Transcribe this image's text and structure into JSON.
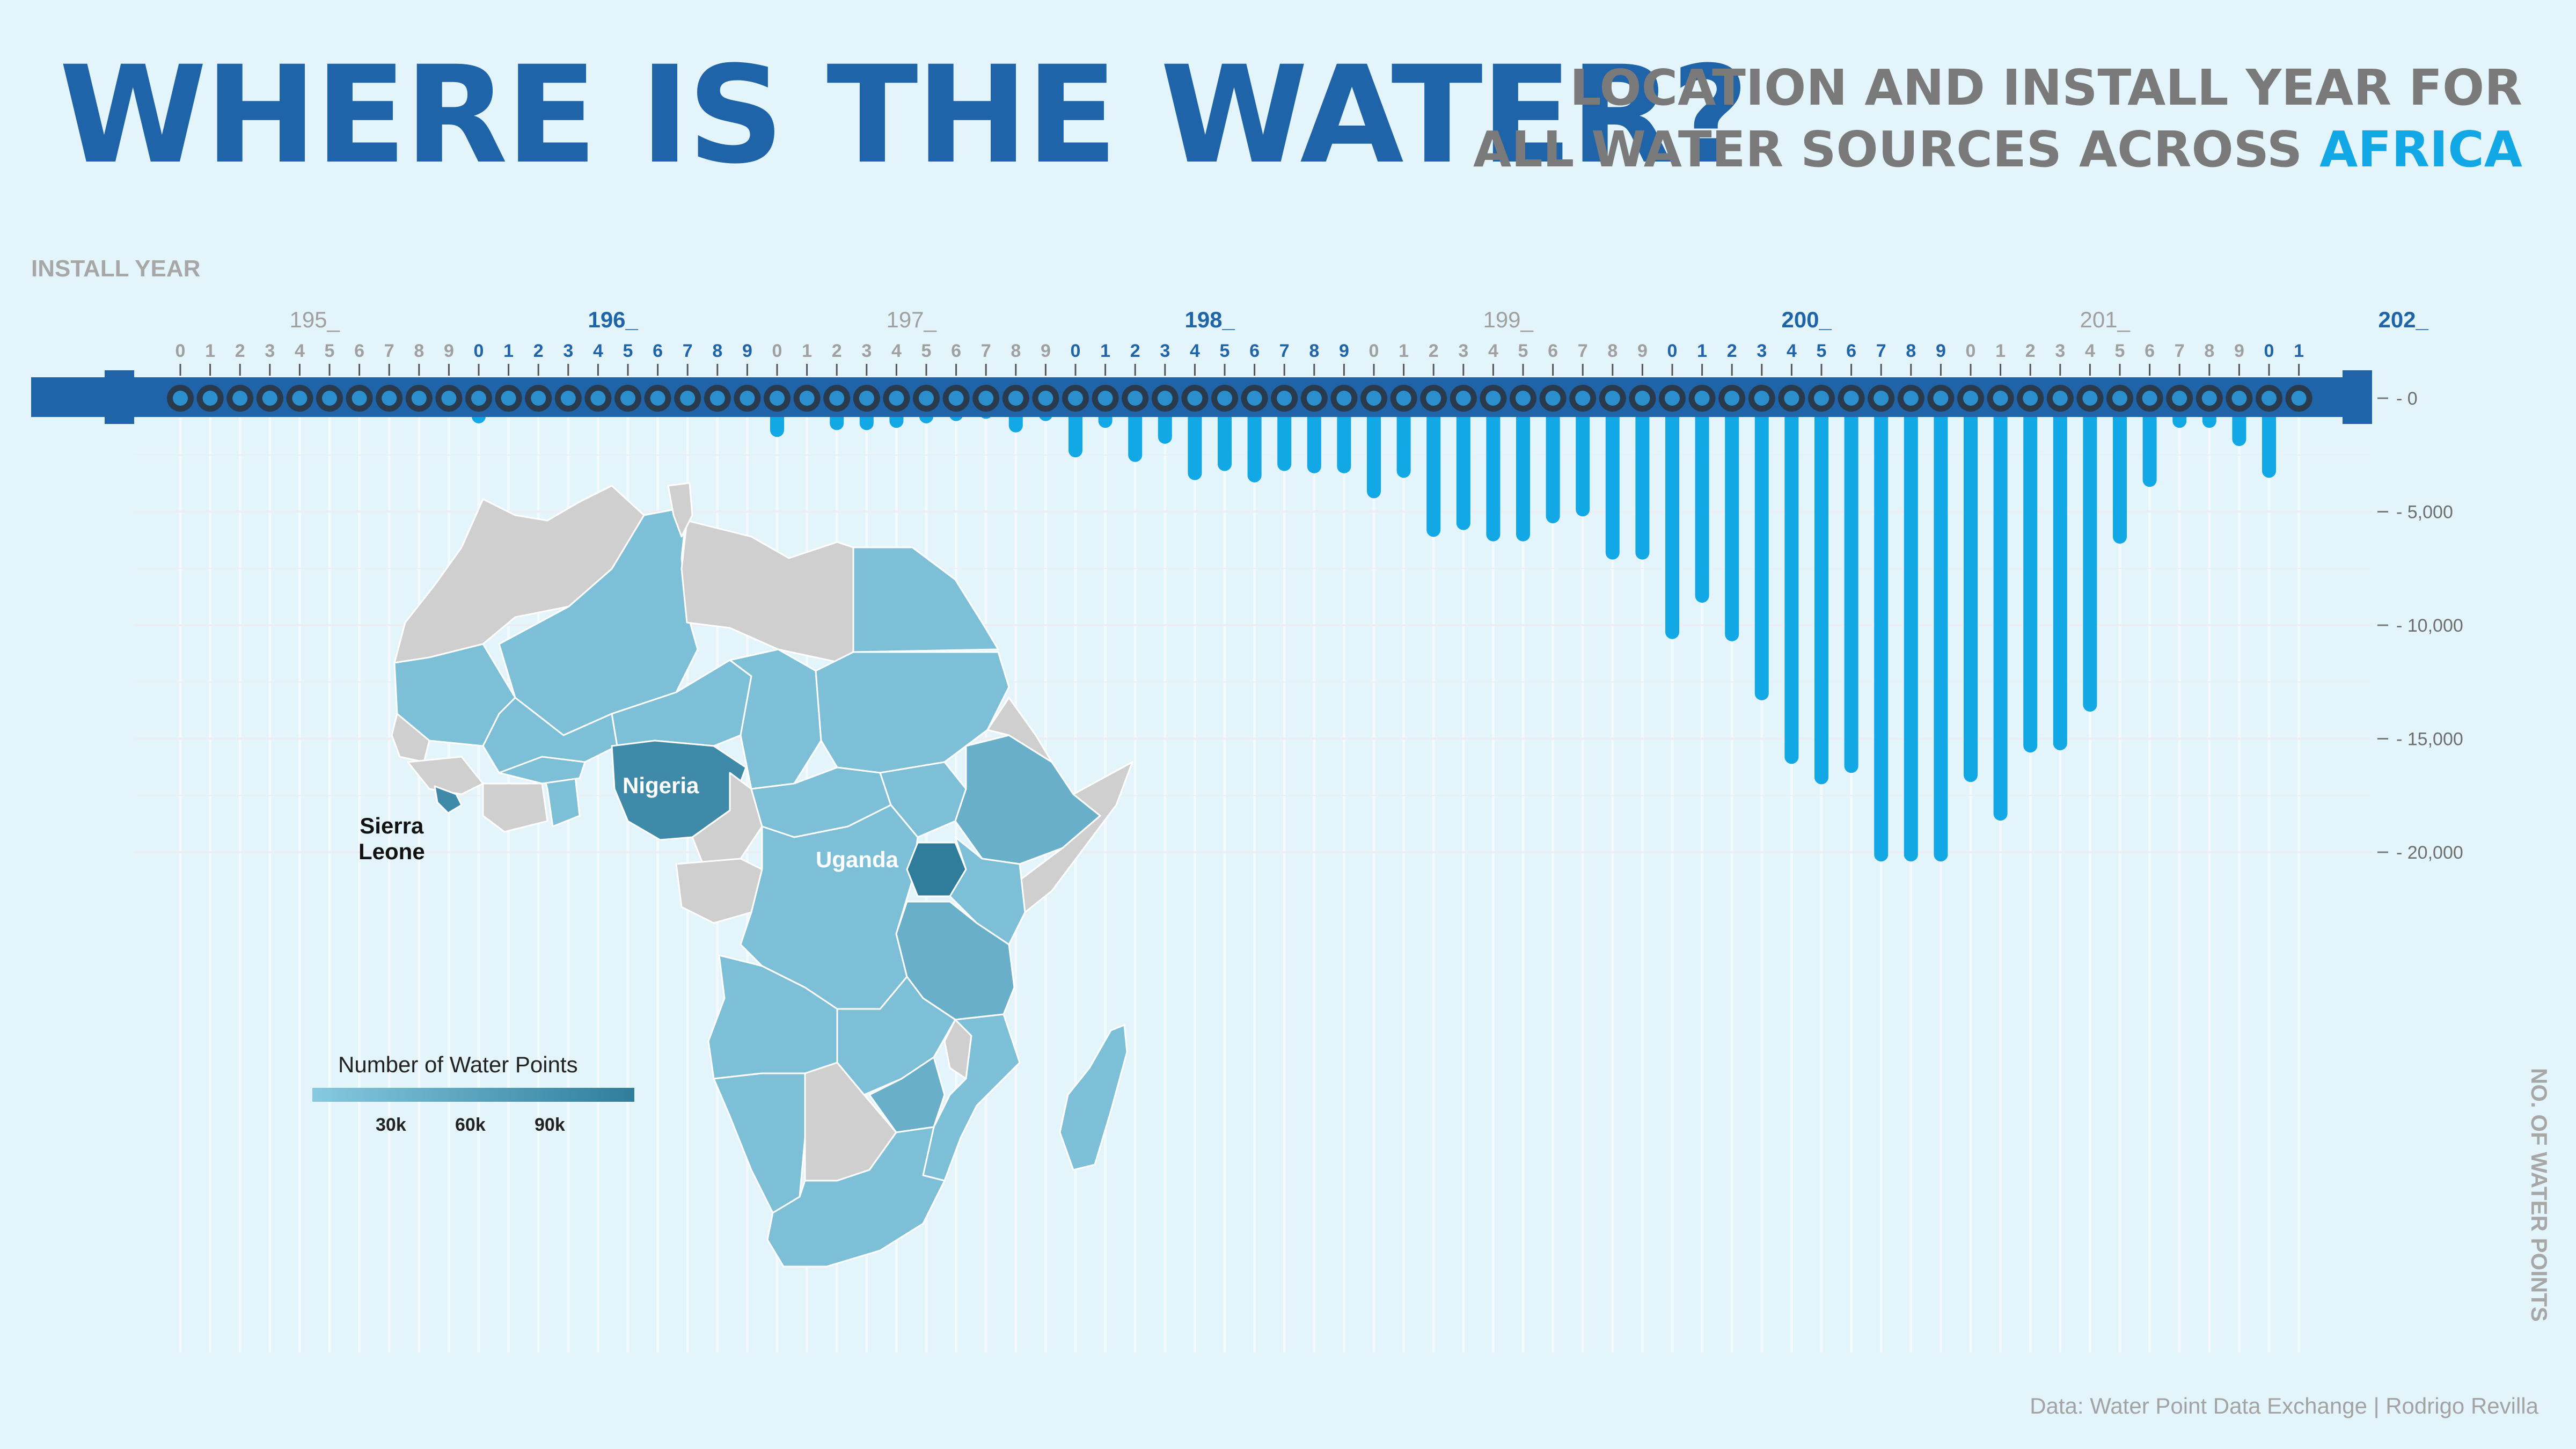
{
  "header": {
    "title": "WHERE IS THE WATER?",
    "subtitle_line1": "LOCATION AND INSTALL YEAR FOR",
    "subtitle_line2_prefix": "ALL WATER SOURCES ACROSS ",
    "subtitle_highlight": "AFRICA"
  },
  "caption": "Data: Water Point Data Exchange | Rodrigo Revilla",
  "colors": {
    "background": "#e3f5fa",
    "title": "#1f63a8",
    "bar": "#12a8e6",
    "pipe": "#1f63a8",
    "decade_blue": "#1f63a8",
    "decade_grey": "#a0a0a0",
    "map_country": "#7dbfd6",
    "map_nodata": "#cfcfcf",
    "map_highlight": "#2f7d9b"
  },
  "map": {
    "legend_title": "Number of Water Points",
    "legend_ticks": [
      "30k",
      "60k",
      "90k"
    ],
    "labels": {
      "nigeria": "Nigeria",
      "uganda": "Uganda",
      "sierra_leone_1": "Sierra",
      "sierra_leone_2": "Leone"
    }
  },
  "chart_data": {
    "type": "bar",
    "orientation": "vertical, hanging downward from top axis",
    "xlabel": "INSTALL YEAR",
    "ylabel": "NO. OF WATER POINTS",
    "decades": [
      {
        "label": "195_",
        "highlight": false
      },
      {
        "label": "196_",
        "highlight": true
      },
      {
        "label": "197_",
        "highlight": false
      },
      {
        "label": "198_",
        "highlight": true
      },
      {
        "label": "199_",
        "highlight": false
      },
      {
        "label": "200_",
        "highlight": true
      },
      {
        "label": "201_",
        "highlight": false
      },
      {
        "label": "202_",
        "highlight": true
      }
    ],
    "x": [
      1950,
      1951,
      1952,
      1953,
      1954,
      1955,
      1956,
      1957,
      1958,
      1959,
      1960,
      1961,
      1962,
      1963,
      1964,
      1965,
      1966,
      1967,
      1968,
      1969,
      1970,
      1971,
      1972,
      1973,
      1974,
      1975,
      1976,
      1977,
      1978,
      1979,
      1980,
      1981,
      1982,
      1983,
      1984,
      1985,
      1986,
      1987,
      1988,
      1989,
      1990,
      1991,
      1992,
      1993,
      1994,
      1995,
      1996,
      1997,
      1998,
      1999,
      2000,
      2001,
      2002,
      2003,
      2004,
      2005,
      2006,
      2007,
      2008,
      2009,
      2010,
      2011,
      2012,
      2013,
      2014,
      2015,
      2016,
      2017,
      2018,
      2019,
      2020,
      2021
    ],
    "tick_labels": [
      "0",
      "1",
      "2",
      "3",
      "4",
      "5",
      "6",
      "7",
      "8",
      "9",
      "0",
      "1",
      "2",
      "3",
      "4",
      "5",
      "6",
      "7",
      "8",
      "9",
      "0",
      "1",
      "2",
      "3",
      "4",
      "5",
      "6",
      "7",
      "8",
      "9",
      "0",
      "1",
      "2",
      "3",
      "4",
      "5",
      "6",
      "7",
      "8",
      "9",
      "0",
      "1",
      "2",
      "3",
      "4",
      "5",
      "6",
      "7",
      "8",
      "9",
      "0",
      "1",
      "2",
      "3",
      "4",
      "5",
      "6",
      "7",
      "8",
      "9",
      "0",
      "1",
      "2",
      "3",
      "4",
      "5",
      "6",
      "7",
      "8",
      "9",
      "0",
      "1"
    ],
    "values": [
      400,
      100,
      250,
      150,
      100,
      100,
      100,
      100,
      100,
      200,
      800,
      150,
      300,
      150,
      150,
      200,
      150,
      200,
      350,
      250,
      1400,
      350,
      1100,
      1100,
      1000,
      800,
      700,
      600,
      1200,
      700,
      2300,
      1000,
      2500,
      1700,
      3300,
      2900,
      3400,
      2900,
      3000,
      3000,
      4100,
      3200,
      5800,
      5500,
      6000,
      6000,
      5200,
      4900,
      6800,
      6800,
      10300,
      8700,
      10400,
      13000,
      15800,
      16700,
      16200,
      20100,
      20100,
      20100,
      16600,
      18300,
      15300,
      15200,
      13500,
      6100,
      3600,
      1000,
      1000,
      1800,
      3200,
      0
    ],
    "yticks": [
      0,
      5000,
      10000,
      15000,
      20000
    ],
    "ytick_labels": [
      "0",
      "5,000",
      "10,000",
      "15,000",
      "20,000"
    ],
    "ylim": [
      0,
      20500
    ],
    "grid": true
  }
}
